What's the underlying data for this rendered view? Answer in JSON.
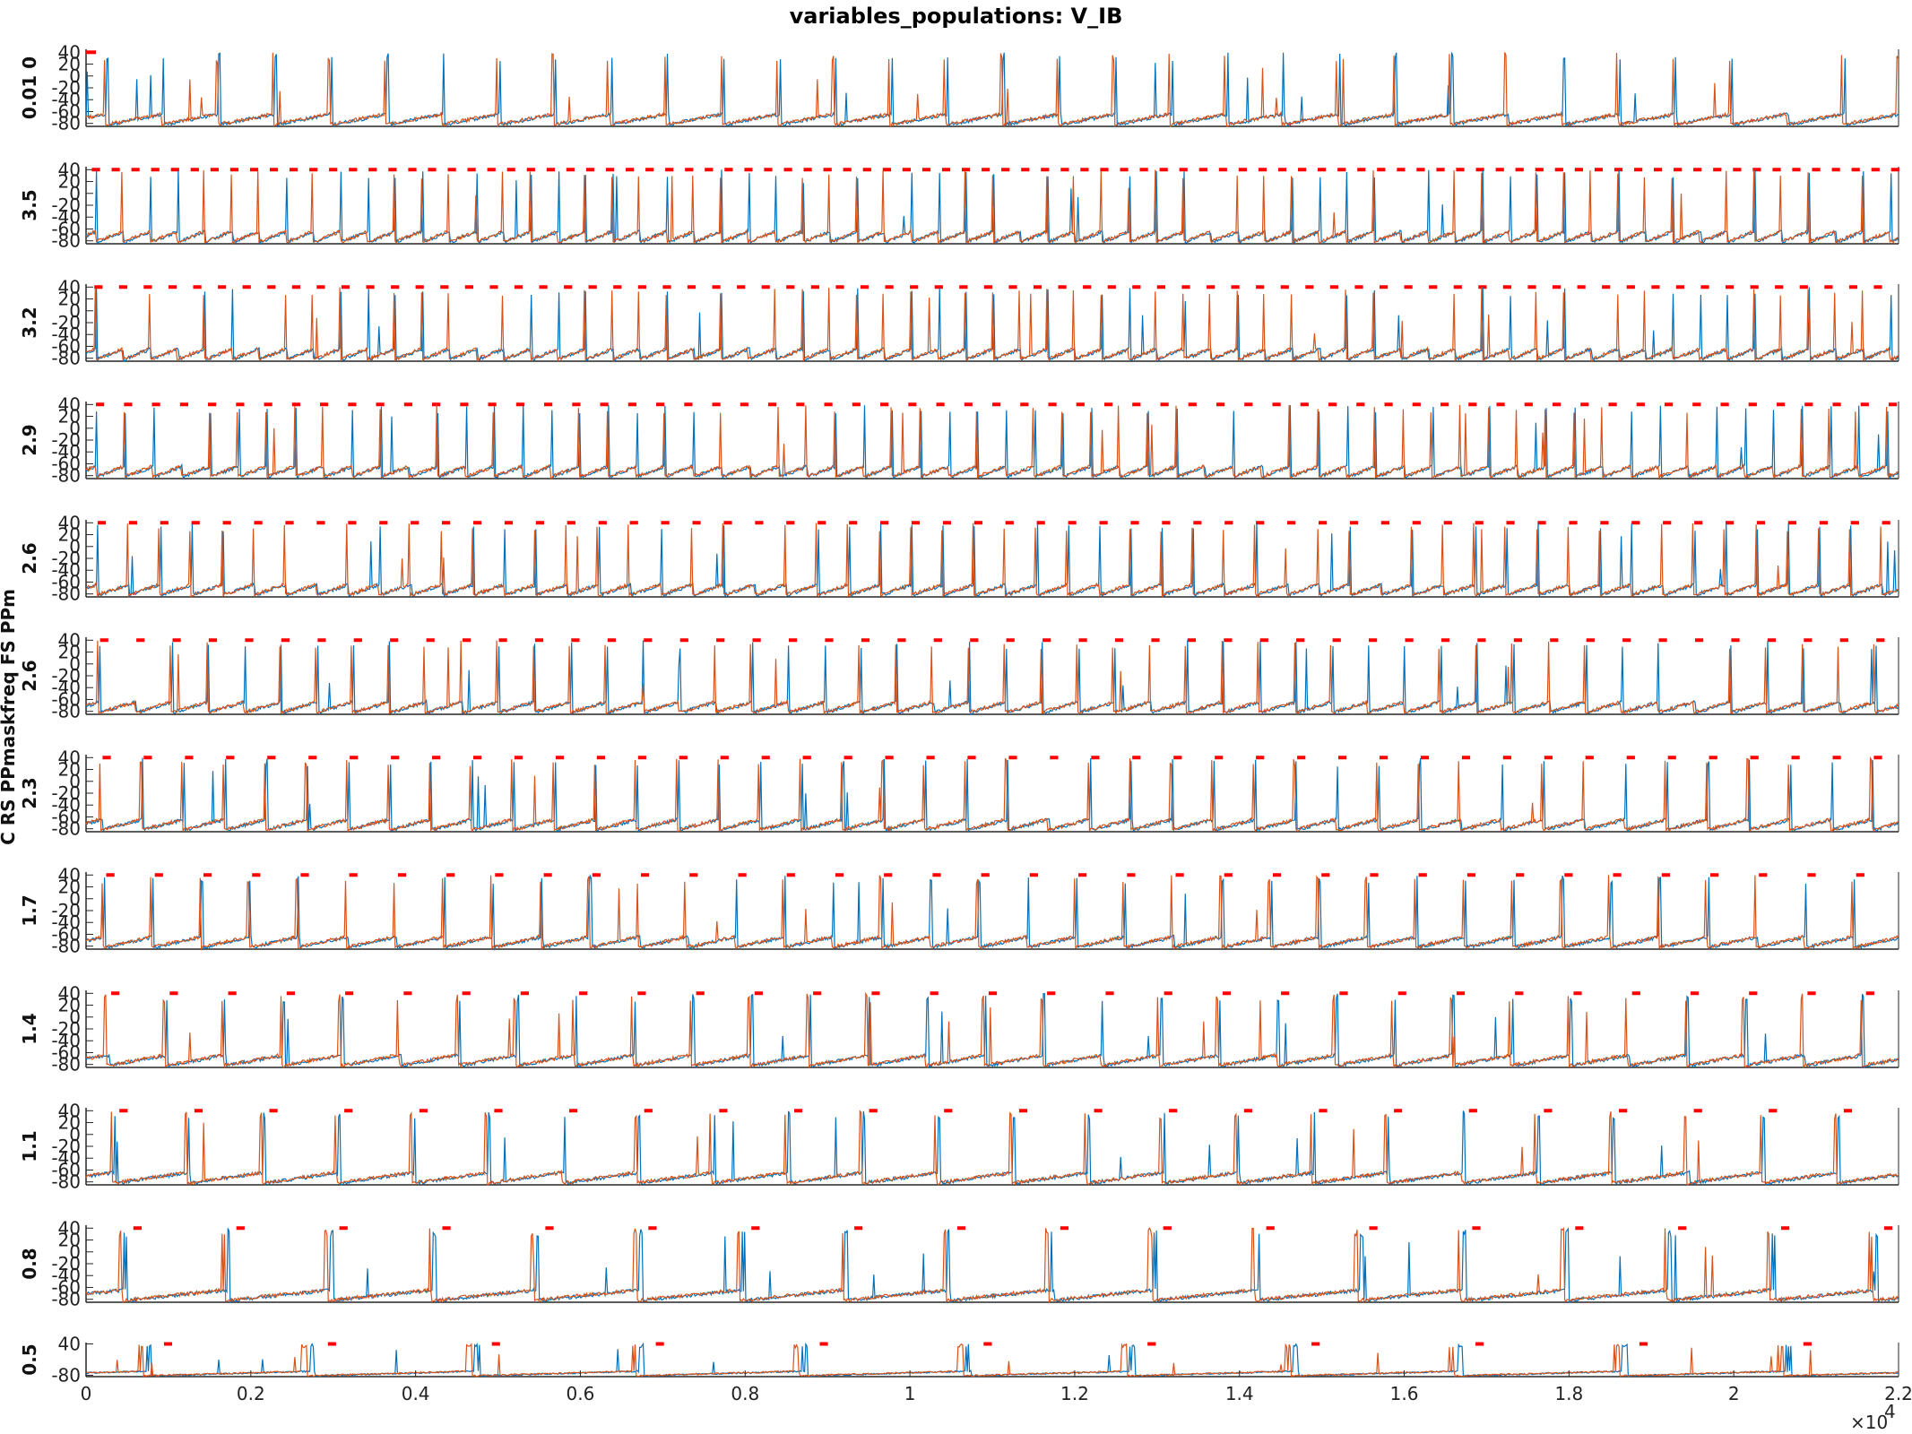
{
  "title": "variables_populations: V_IB",
  "colors": {
    "series1": "#0072BD",
    "series2": "#D95319",
    "marker": "#FF0000",
    "axis": "#262626"
  },
  "chart_data": {
    "type": "line",
    "title": "variables_populations: V_IB",
    "x_range": [
      0,
      22000
    ],
    "x_ticks": [
      0,
      2000,
      4000,
      6000,
      8000,
      10000,
      12000,
      14000,
      16000,
      18000,
      20000,
      22000
    ],
    "x_tick_labels": [
      "0",
      "0.2",
      "0.4",
      "0.6",
      "0.8",
      "1",
      "1.2",
      "1.4",
      "1.6",
      "1.8",
      "2",
      "2.2"
    ],
    "x_exponent_label": "×10",
    "x_exponent_power": "4",
    "y_range": [
      -85,
      45
    ],
    "y_ticks": [
      40,
      20,
      0,
      -20,
      -40,
      -60,
      -80
    ],
    "y_tick_labels": [
      "40",
      "20",
      "0",
      "-20",
      "-40",
      "-60",
      "-80"
    ],
    "last_panel_y_tick_labels": [
      "40",
      "-80"
    ],
    "side_label": "C RS PPmaskfreq FS PPm",
    "panel_side_labels": [
      "0.01 0",
      "3.5",
      "3.2",
      "2.9",
      "2.6",
      "2.6",
      "2.3",
      "1.7",
      "1.4",
      "1.1",
      "0.8",
      "0.5"
    ],
    "panels": [
      {
        "marker_period": 0,
        "spike_period": 680
      },
      {
        "marker_period": 240,
        "spike_period": 330
      },
      {
        "marker_period": 300,
        "spike_period": 330
      },
      {
        "marker_period": 340,
        "spike_period": 345
      },
      {
        "marker_period": 380,
        "spike_period": 380
      },
      {
        "marker_period": 440,
        "spike_period": 440
      },
      {
        "marker_period": 500,
        "spike_period": 500
      },
      {
        "marker_period": 590,
        "spike_period": 590
      },
      {
        "marker_period": 710,
        "spike_period": 710
      },
      {
        "marker_period": 910,
        "spike_period": 910
      },
      {
        "marker_period": 1250,
        "spike_period": 1250
      },
      {
        "marker_period": 1990,
        "spike_period": 1990
      }
    ],
    "series": [
      {
        "color": "#0072BD"
      },
      {
        "color": "#D95319"
      }
    ]
  }
}
